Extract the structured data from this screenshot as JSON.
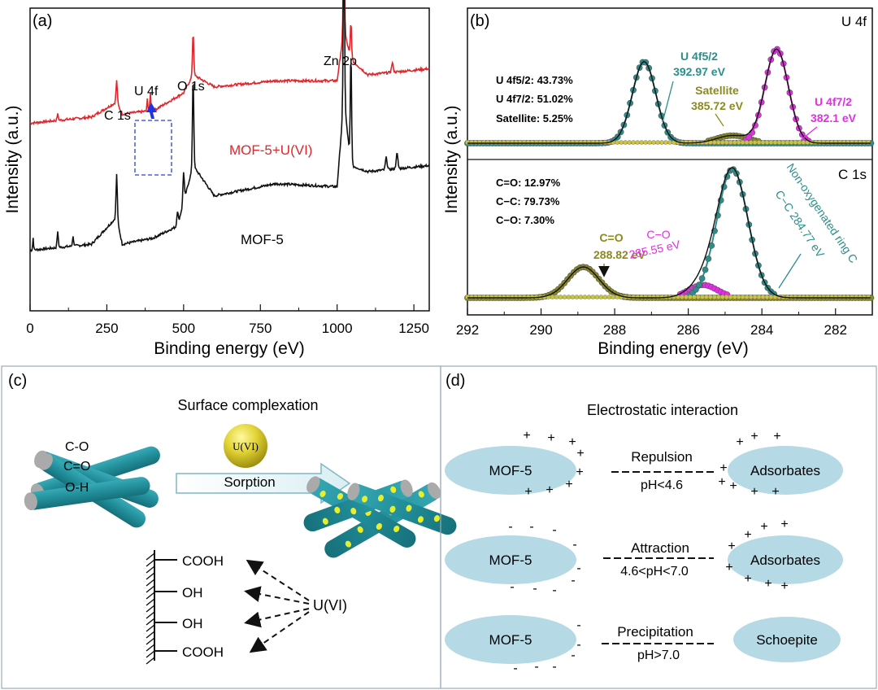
{
  "panel_a": {
    "label": "(a)",
    "xlabel": "Binding energy (eV)",
    "ylabel": "Intensity (a.u.)",
    "xticks": [
      "0",
      "250",
      "500",
      "750",
      "1000",
      "1250"
    ],
    "annotations": [
      "C 1s",
      "U 4f",
      "O 1s",
      "Zn 2p"
    ],
    "series_labels": [
      "MOF-5+U(VI)",
      "MOF-5"
    ]
  },
  "panel_b": {
    "label": "(b)",
    "xlabel": "Binding energy (eV)",
    "ylabel": "Intensity (a.u.)",
    "xticks": [
      "292",
      "290",
      "288",
      "286",
      "284",
      "282"
    ],
    "top_title": "U 4f",
    "bottom_title": "C 1s",
    "u4f_summary": [
      "U 4f5/2: 43.73%",
      "U 4f7/2: 51.02%",
      "Satellite: 5.25%"
    ],
    "u4f_peaks": [
      "U 4f5/2",
      "392.97 eV",
      "Satellite",
      "385.72 eV",
      "U 4f7/2",
      "382.1 eV"
    ],
    "c1s_summary": [
      "C=O: 12.97%",
      "C−C: 79.73%",
      "C−O: 7.30%"
    ],
    "c1s_peaks": [
      "C=O",
      "288.82 eV",
      "C−O",
      "285.55 eV",
      "Non-oxygenated ring C",
      "C−C  284.77 eV"
    ]
  },
  "panel_c": {
    "label": "(c)",
    "title": "Surface complexation",
    "groups": [
      "C-O",
      "C=O",
      "O-H"
    ],
    "ball_label": "U(VI)",
    "arrow_label": "Sorption",
    "functional_groups": [
      "COOH",
      "OH",
      "OH",
      "COOH"
    ],
    "source_label": "U(VI)"
  },
  "panel_d": {
    "label": "(d)",
    "title": "Electrostatic interaction",
    "rows": [
      {
        "left": "MOF-5",
        "top": "Repulsion",
        "bottom": "pH<4.6",
        "right": "Adsorbates"
      },
      {
        "left": "MOF-5",
        "top": "Attraction",
        "bottom": "4.6<pH<7.0",
        "right": "Adsorbates"
      },
      {
        "left": "MOF-5",
        "top": "Precipitation",
        "bottom": "pH>7.0",
        "right": "Schoepite"
      }
    ]
  },
  "colors": {
    "red": "#e0262b",
    "black": "#111111",
    "teal": "#2a8e8a",
    "magenta": "#e62ce6",
    "olive": "#8a8a20",
    "ellipse": "#b5d9e5",
    "rod": "#218e9a",
    "dot": "#e8ee2a",
    "ball": "#cfc21e",
    "blue": "#1d34e6"
  },
  "chart_data": [
    {
      "type": "line",
      "title": "",
      "xlabel": "Binding energy (eV)",
      "ylabel": "Intensity (a.u.)",
      "xlim": [
        0,
        1300
      ],
      "series": [
        {
          "name": "MOF-5+U(VI)",
          "x": [
            0,
            100,
            200,
            282,
            300,
            382,
            390,
            400,
            500,
            531,
            600,
            800,
            1000,
            1022,
            1045,
            1100,
            1200,
            1300
          ],
          "y": [
            0.62,
            0.63,
            0.64,
            0.69,
            0.65,
            0.66,
            0.67,
            0.66,
            0.72,
            0.78,
            0.74,
            0.76,
            0.76,
            0.93,
            0.83,
            0.78,
            0.79,
            0.8
          ]
        },
        {
          "name": "MOF-5",
          "x": [
            0,
            100,
            200,
            282,
            300,
            400,
            480,
            500,
            531,
            600,
            800,
            1000,
            1022,
            1045,
            1100,
            1200,
            1300
          ],
          "y": [
            0.2,
            0.21,
            0.22,
            0.31,
            0.22,
            0.24,
            0.28,
            0.36,
            0.48,
            0.38,
            0.42,
            0.41,
            0.7,
            0.48,
            0.46,
            0.47,
            0.48
          ]
        }
      ]
    },
    {
      "type": "line",
      "title": "U 4f",
      "xlabel": "Binding energy (eV)",
      "ylabel": "Intensity (a.u.)",
      "xlim": [
        292,
        281
      ],
      "series": [
        {
          "name": "U 4f5/2",
          "peak_x": 287.2,
          "height": 0.85
        },
        {
          "name": "Satellite",
          "peak_x": 284.8,
          "height": 0.08
        },
        {
          "name": "U 4f7/2",
          "peak_x": 283.6,
          "height": 0.98
        }
      ]
    },
    {
      "type": "line",
      "title": "C 1s",
      "xlabel": "Binding energy (eV)",
      "ylabel": "Intensity (a.u.)",
      "xlim": [
        292,
        281
      ],
      "series": [
        {
          "name": "C=O",
          "peak_x": 288.85,
          "height": 0.24
        },
        {
          "name": "C−O",
          "peak_x": 285.6,
          "height": 0.1
        },
        {
          "name": "C−C",
          "peak_x": 284.8,
          "height": 1.0
        }
      ]
    }
  ]
}
